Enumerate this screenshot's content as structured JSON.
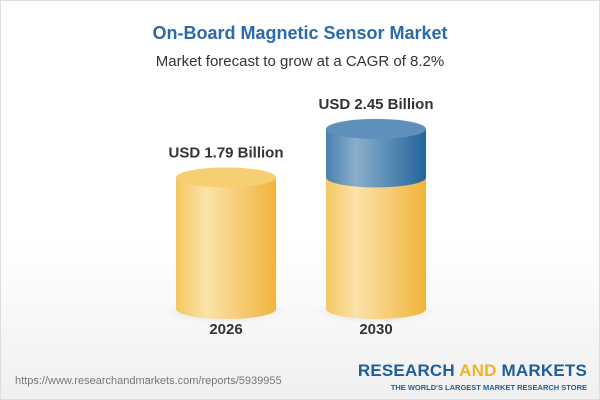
{
  "title": "On-Board Magnetic Sensor Market",
  "subtitle": "Market forecast to grow at a CAGR of 8.2%",
  "chart_data": {
    "type": "bar",
    "style": "3d-cylinder",
    "categories": [
      "2026",
      "2030"
    ],
    "values": [
      1.79,
      2.45
    ],
    "data_labels": [
      "USD 1.79 Billion",
      "USD 2.45 Billion"
    ],
    "unit": "USD Billion",
    "colors": {
      "base": "#f3c45a",
      "growth": "#4f86b6"
    }
  },
  "footer": {
    "url": "https://www.researchandmarkets.com/reports/5939955",
    "logo_part1": "RESEARCH ",
    "logo_part2": "AND",
    "logo_part3": " MARKETS",
    "tagline": "THE WORLD'S LARGEST MARKET RESEARCH STORE"
  }
}
